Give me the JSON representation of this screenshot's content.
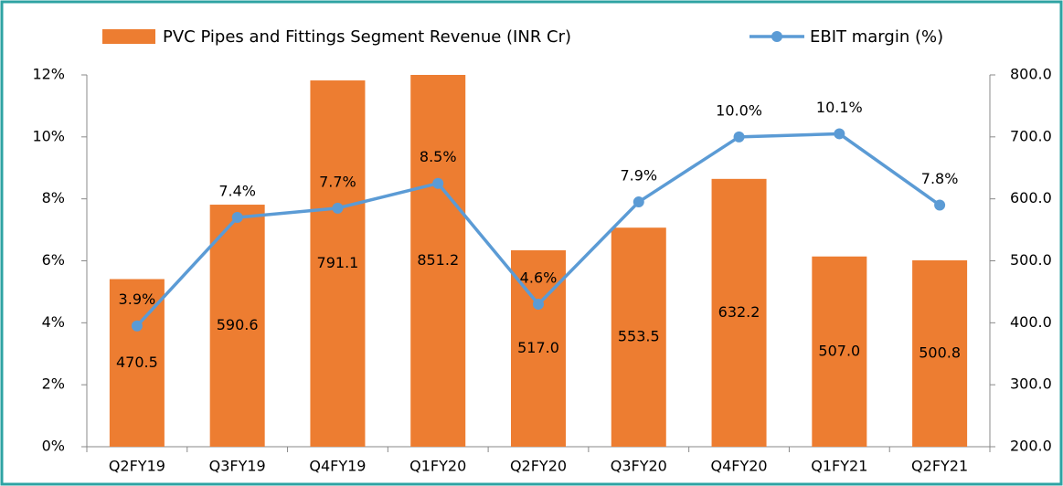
{
  "chart_data": {
    "type": "bar_line",
    "categories": [
      "Q2FY19",
      "Q3FY19",
      "Q4FY19",
      "Q1FY20",
      "Q2FY20",
      "Q3FY20",
      "Q4FY20",
      "Q1FY21",
      "Q2FY21"
    ],
    "series": [
      {
        "name": "PVC Pipes and Fittings Segment Revenue (INR Cr)",
        "type": "bar",
        "axis": "y2",
        "color": "#ed7d31",
        "values": [
          470.5,
          590.6,
          791.1,
          851.2,
          517.0,
          553.5,
          632.2,
          507.0,
          500.8
        ],
        "value_labels": [
          "470.5",
          "590.6",
          "791.1",
          "851.2",
          "517.0",
          "553.5",
          "632.2",
          "507.0",
          "500.8"
        ]
      },
      {
        "name": "EBIT margin (%)",
        "type": "line",
        "axis": "y",
        "color": "#5b9bd5",
        "values": [
          3.9,
          7.4,
          7.7,
          8.5,
          4.6,
          7.9,
          10.0,
          10.1,
          7.8
        ],
        "value_labels": [
          "3.9%",
          "7.4%",
          "7.7%",
          "8.5%",
          "4.6%",
          "7.9%",
          "10.0%",
          "10.1%",
          "7.8%"
        ]
      }
    ],
    "ylim": [
      0,
      12
    ],
    "yticks": [
      {
        "value": 0,
        "label": "0%"
      },
      {
        "value": 2,
        "label": "2%"
      },
      {
        "value": 4,
        "label": "4%"
      },
      {
        "value": 6,
        "label": "6%"
      },
      {
        "value": 8,
        "label": "8%"
      },
      {
        "value": 10,
        "label": "10%"
      },
      {
        "value": 12,
        "label": "12%"
      }
    ],
    "y2lim": [
      200,
      800
    ],
    "y2ticks": [
      {
        "value": 200,
        "label": "200.0"
      },
      {
        "value": 300,
        "label": "300.0"
      },
      {
        "value": 400,
        "label": "400.0"
      },
      {
        "value": 500,
        "label": "500.0"
      },
      {
        "value": 600,
        "label": "600.0"
      },
      {
        "value": 700,
        "label": "700.0"
      },
      {
        "value": 800,
        "label": "800.0"
      }
    ],
    "legend": "top",
    "grid": false
  }
}
